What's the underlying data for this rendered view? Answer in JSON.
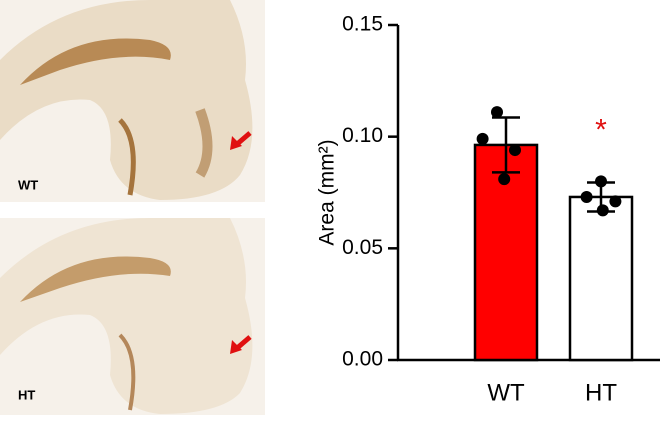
{
  "images": [
    {
      "label": "WT"
    },
    {
      "label": "HT"
    }
  ],
  "chart_data": {
    "type": "bar",
    "ylabel": "Area (mm²)",
    "categories": [
      "WT",
      "HT"
    ],
    "values": [
      0.0963,
      0.073
    ],
    "errors": [
      0.0123,
      0.0065
    ],
    "points": [
      [
        0.111,
        0.099,
        0.094,
        0.081
      ],
      [
        0.08,
        0.073,
        0.071,
        0.067
      ]
    ],
    "colors": [
      "#ff0000",
      "#ffffff"
    ],
    "annotations": [
      {
        "category": 1,
        "text": "*",
        "color": "#e01010"
      }
    ],
    "ylim": [
      0,
      0.15
    ],
    "yticks": [
      {
        "value": 0,
        "label": "0.00"
      },
      {
        "value": 0.05,
        "label": "0.05"
      },
      {
        "value": 0.1,
        "label": "0.10"
      },
      {
        "value": 0.15,
        "label": "0.15"
      }
    ]
  }
}
